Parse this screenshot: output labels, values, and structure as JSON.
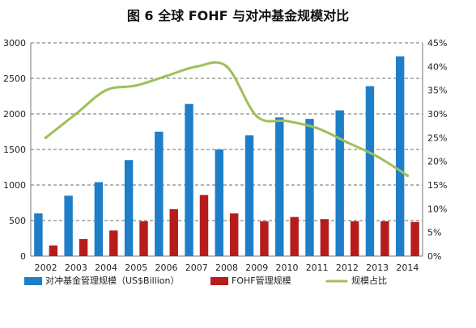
{
  "chart_data": {
    "type": "bar",
    "title": "图 6 全球 FOHF 与对冲基金规模对比",
    "categories": [
      "2002",
      "2003",
      "2004",
      "2005",
      "2006",
      "2007",
      "2008",
      "2009",
      "2010",
      "2011",
      "2012",
      "2013",
      "2014"
    ],
    "series": [
      {
        "name": "对冲基金管理规模（US$Billion）",
        "type": "bar",
        "axis": "left",
        "color": "#1f7ec8",
        "values": [
          600,
          850,
          1040,
          1350,
          1750,
          2140,
          1500,
          1700,
          1950,
          1930,
          2050,
          2390,
          2810
        ]
      },
      {
        "name": "FOHF管理规模",
        "type": "bar",
        "axis": "left",
        "color": "#b71c1c",
        "values": [
          150,
          240,
          360,
          490,
          660,
          860,
          600,
          490,
          550,
          520,
          490,
          490,
          480
        ]
      },
      {
        "name": "规模占比",
        "type": "line",
        "axis": "right",
        "color": "#9fbf5a",
        "values": [
          25,
          30,
          35,
          36,
          38,
          40,
          40,
          29.5,
          28.5,
          27,
          24,
          21,
          17
        ]
      }
    ],
    "y_left": {
      "range": [
        0,
        3000
      ],
      "ticks": [
        "0",
        "500",
        "1000",
        "1500",
        "2000",
        "2500",
        "3000"
      ]
    },
    "y_right": {
      "range": [
        0,
        45
      ],
      "ticks": [
        "0%",
        "5%",
        "10%",
        "15%",
        "20%",
        "25%",
        "30%",
        "35%",
        "40%",
        "45%"
      ]
    },
    "grid": true,
    "legend": "bottom"
  }
}
